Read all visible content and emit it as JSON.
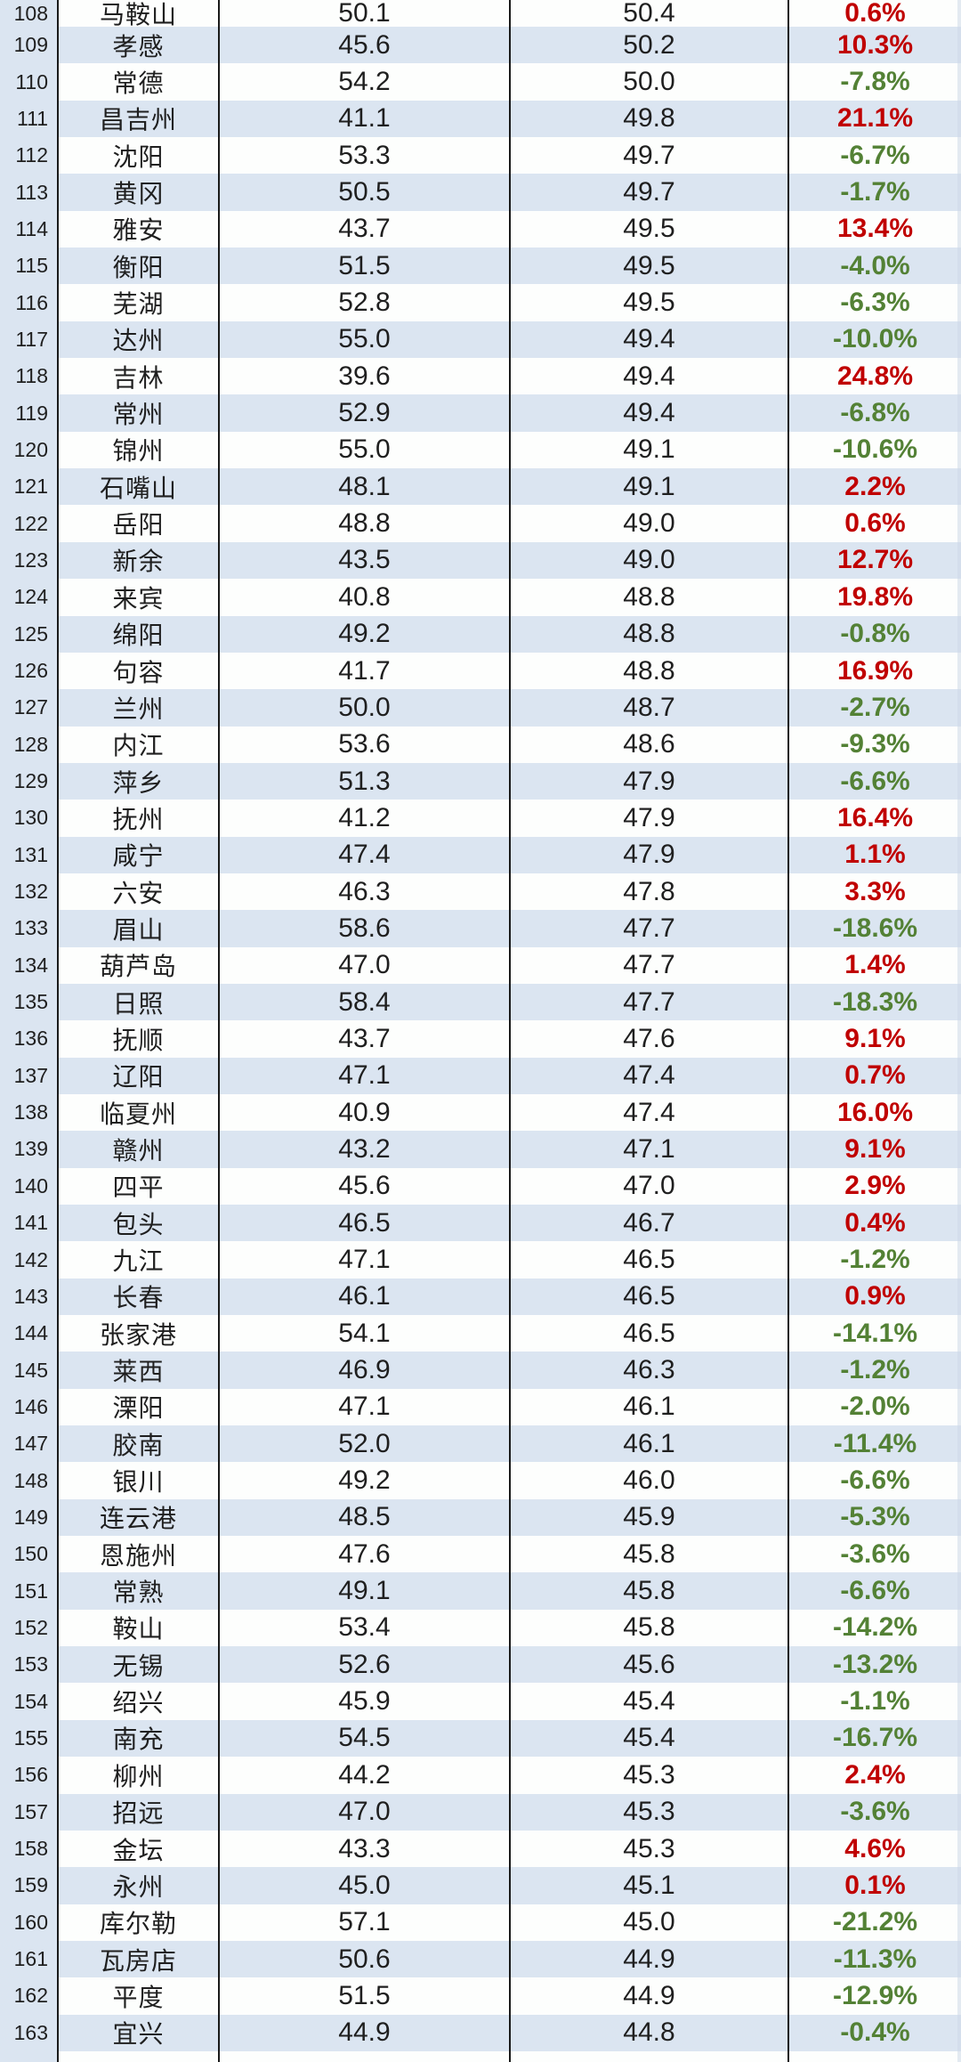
{
  "colors": {
    "positive_change": "#c00000",
    "negative_change": "#538135",
    "row_band_blue": "#dbe5f1",
    "text": "#1f1f1f",
    "grid_border": "#1a1a1a"
  },
  "chart_data": {
    "type": "table",
    "visible_rank_range": [
      108,
      163
    ],
    "rows": [
      {
        "rank": "108",
        "city": "马鞍山",
        "v1": "50.1",
        "v2": "50.4",
        "chg": "0.6%"
      },
      {
        "rank": "109",
        "city": "孝感",
        "v1": "45.6",
        "v2": "50.2",
        "chg": "10.3%"
      },
      {
        "rank": "110",
        "city": "常德",
        "v1": "54.2",
        "v2": "50.0",
        "chg": "-7.8%"
      },
      {
        "rank": "111",
        "city": "昌吉州",
        "v1": "41.1",
        "v2": "49.8",
        "chg": "21.1%"
      },
      {
        "rank": "112",
        "city": "沈阳",
        "v1": "53.3",
        "v2": "49.7",
        "chg": "-6.7%"
      },
      {
        "rank": "113",
        "city": "黄冈",
        "v1": "50.5",
        "v2": "49.7",
        "chg": "-1.7%"
      },
      {
        "rank": "114",
        "city": "雅安",
        "v1": "43.7",
        "v2": "49.5",
        "chg": "13.4%"
      },
      {
        "rank": "115",
        "city": "衡阳",
        "v1": "51.5",
        "v2": "49.5",
        "chg": "-4.0%"
      },
      {
        "rank": "116",
        "city": "芜湖",
        "v1": "52.8",
        "v2": "49.5",
        "chg": "-6.3%"
      },
      {
        "rank": "117",
        "city": "达州",
        "v1": "55.0",
        "v2": "49.4",
        "chg": "-10.0%"
      },
      {
        "rank": "118",
        "city": "吉林",
        "v1": "39.6",
        "v2": "49.4",
        "chg": "24.8%"
      },
      {
        "rank": "119",
        "city": "常州",
        "v1": "52.9",
        "v2": "49.4",
        "chg": "-6.8%"
      },
      {
        "rank": "120",
        "city": "锦州",
        "v1": "55.0",
        "v2": "49.1",
        "chg": "-10.6%"
      },
      {
        "rank": "121",
        "city": "石嘴山",
        "v1": "48.1",
        "v2": "49.1",
        "chg": "2.2%"
      },
      {
        "rank": "122",
        "city": "岳阳",
        "v1": "48.8",
        "v2": "49.0",
        "chg": "0.6%"
      },
      {
        "rank": "123",
        "city": "新余",
        "v1": "43.5",
        "v2": "49.0",
        "chg": "12.7%"
      },
      {
        "rank": "124",
        "city": "来宾",
        "v1": "40.8",
        "v2": "48.8",
        "chg": "19.8%"
      },
      {
        "rank": "125",
        "city": "绵阳",
        "v1": "49.2",
        "v2": "48.8",
        "chg": "-0.8%"
      },
      {
        "rank": "126",
        "city": "句容",
        "v1": "41.7",
        "v2": "48.8",
        "chg": "16.9%"
      },
      {
        "rank": "127",
        "city": "兰州",
        "v1": "50.0",
        "v2": "48.7",
        "chg": "-2.7%"
      },
      {
        "rank": "128",
        "city": "内江",
        "v1": "53.6",
        "v2": "48.6",
        "chg": "-9.3%"
      },
      {
        "rank": "129",
        "city": "萍乡",
        "v1": "51.3",
        "v2": "47.9",
        "chg": "-6.6%"
      },
      {
        "rank": "130",
        "city": "抚州",
        "v1": "41.2",
        "v2": "47.9",
        "chg": "16.4%"
      },
      {
        "rank": "131",
        "city": "咸宁",
        "v1": "47.4",
        "v2": "47.9",
        "chg": "1.1%"
      },
      {
        "rank": "132",
        "city": "六安",
        "v1": "46.3",
        "v2": "47.8",
        "chg": "3.3%"
      },
      {
        "rank": "133",
        "city": "眉山",
        "v1": "58.6",
        "v2": "47.7",
        "chg": "-18.6%"
      },
      {
        "rank": "134",
        "city": "葫芦岛",
        "v1": "47.0",
        "v2": "47.7",
        "chg": "1.4%"
      },
      {
        "rank": "135",
        "city": "日照",
        "v1": "58.4",
        "v2": "47.7",
        "chg": "-18.3%"
      },
      {
        "rank": "136",
        "city": "抚顺",
        "v1": "43.7",
        "v2": "47.6",
        "chg": "9.1%"
      },
      {
        "rank": "137",
        "city": "辽阳",
        "v1": "47.1",
        "v2": "47.4",
        "chg": "0.7%"
      },
      {
        "rank": "138",
        "city": "临夏州",
        "v1": "40.9",
        "v2": "47.4",
        "chg": "16.0%"
      },
      {
        "rank": "139",
        "city": "赣州",
        "v1": "43.2",
        "v2": "47.1",
        "chg": "9.1%"
      },
      {
        "rank": "140",
        "city": "四平",
        "v1": "45.6",
        "v2": "47.0",
        "chg": "2.9%"
      },
      {
        "rank": "141",
        "city": "包头",
        "v1": "46.5",
        "v2": "46.7",
        "chg": "0.4%"
      },
      {
        "rank": "142",
        "city": "九江",
        "v1": "47.1",
        "v2": "46.5",
        "chg": "-1.2%"
      },
      {
        "rank": "143",
        "city": "长春",
        "v1": "46.1",
        "v2": "46.5",
        "chg": "0.9%"
      },
      {
        "rank": "144",
        "city": "张家港",
        "v1": "54.1",
        "v2": "46.5",
        "chg": "-14.1%"
      },
      {
        "rank": "145",
        "city": "莱西",
        "v1": "46.9",
        "v2": "46.3",
        "chg": "-1.2%"
      },
      {
        "rank": "146",
        "city": "溧阳",
        "v1": "47.1",
        "v2": "46.1",
        "chg": "-2.0%"
      },
      {
        "rank": "147",
        "city": "胶南",
        "v1": "52.0",
        "v2": "46.1",
        "chg": "-11.4%"
      },
      {
        "rank": "148",
        "city": "银川",
        "v1": "49.2",
        "v2": "46.0",
        "chg": "-6.6%"
      },
      {
        "rank": "149",
        "city": "连云港",
        "v1": "48.5",
        "v2": "45.9",
        "chg": "-5.3%"
      },
      {
        "rank": "150",
        "city": "恩施州",
        "v1": "47.6",
        "v2": "45.8",
        "chg": "-3.6%"
      },
      {
        "rank": "151",
        "city": "常熟",
        "v1": "49.1",
        "v2": "45.8",
        "chg": "-6.6%"
      },
      {
        "rank": "152",
        "city": "鞍山",
        "v1": "53.4",
        "v2": "45.8",
        "chg": "-14.2%"
      },
      {
        "rank": "153",
        "city": "无锡",
        "v1": "52.6",
        "v2": "45.6",
        "chg": "-13.2%"
      },
      {
        "rank": "154",
        "city": "绍兴",
        "v1": "45.9",
        "v2": "45.4",
        "chg": "-1.1%"
      },
      {
        "rank": "155",
        "city": "南充",
        "v1": "54.5",
        "v2": "45.4",
        "chg": "-16.7%"
      },
      {
        "rank": "156",
        "city": "柳州",
        "v1": "44.2",
        "v2": "45.3",
        "chg": "2.4%"
      },
      {
        "rank": "157",
        "city": "招远",
        "v1": "47.0",
        "v2": "45.3",
        "chg": "-3.6%"
      },
      {
        "rank": "158",
        "city": "金坛",
        "v1": "43.3",
        "v2": "45.3",
        "chg": "4.6%"
      },
      {
        "rank": "159",
        "city": "永州",
        "v1": "45.0",
        "v2": "45.1",
        "chg": "0.1%"
      },
      {
        "rank": "160",
        "city": "库尔勒",
        "v1": "57.1",
        "v2": "45.0",
        "chg": "-21.2%"
      },
      {
        "rank": "161",
        "city": "瓦房店",
        "v1": "50.6",
        "v2": "44.9",
        "chg": "-11.3%"
      },
      {
        "rank": "162",
        "city": "平度",
        "v1": "51.5",
        "v2": "44.9",
        "chg": "-12.9%"
      },
      {
        "rank": "163",
        "city": "宜兴",
        "v1": "44.9",
        "v2": "44.8",
        "chg": "-0.4%"
      }
    ]
  }
}
